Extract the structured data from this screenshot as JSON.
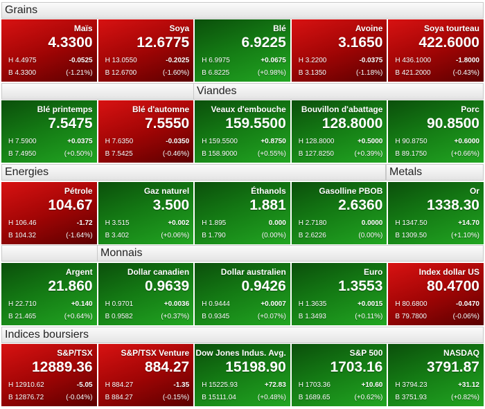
{
  "sections": [
    "Grains",
    "Viandes",
    "Energies",
    "Metals",
    "Monnais",
    "Indices boursiers"
  ],
  "rows": [
    [
      {
        "name": "Maïs",
        "last": "4.3300",
        "high": "H 4.4975",
        "change": "-0.0525",
        "low": "B 4.3300",
        "pct": "(-1.21%)"
      },
      {
        "name": "Soya",
        "last": "12.6775",
        "high": "H 13.0550",
        "change": "-0.2025",
        "low": "B 12.6700",
        "pct": "(-1.60%)"
      },
      {
        "name": "Blé",
        "last": "6.9225",
        "high": "H 6.9975",
        "change": "+0.0675",
        "low": "B 6.8225",
        "pct": "(+0.98%)"
      },
      {
        "name": "Avoine",
        "last": "3.1650",
        "high": "H 3.2200",
        "change": "-0.0375",
        "low": "B 3.1350",
        "pct": "(-1.18%)"
      },
      {
        "name": "Soya tourteau",
        "last": "422.6000",
        "high": "H 436.1000",
        "change": "-1.8000",
        "low": "B 421.2000",
        "pct": "(-0.43%)"
      }
    ],
    [
      {
        "name": "Blé printemps",
        "last": "7.5475",
        "high": "H 7.5900",
        "change": "+0.0375",
        "low": "B 7.4950",
        "pct": "(+0.50%)"
      },
      {
        "name": "Blé d'automne",
        "last": "7.5550",
        "high": "H 7.6350",
        "change": "-0.0350",
        "low": "B 7.5425",
        "pct": "(-0.46%)"
      },
      {
        "name": "Veaux d'embouche",
        "last": "159.5500",
        "high": "H 159.5500",
        "change": "+0.8750",
        "low": "B 158.9000",
        "pct": "(+0.55%)"
      },
      {
        "name": "Bouvillon d'abattage",
        "last": "128.8000",
        "high": "H 128.8000",
        "change": "+0.5000",
        "low": "B 127.8250",
        "pct": "(+0.39%)"
      },
      {
        "name": "Porc",
        "last": "90.8500",
        "high": "H 90.8750",
        "change": "+0.6000",
        "low": "B 89.1750",
        "pct": "(+0.66%)"
      }
    ],
    [
      {
        "name": "Pétrole",
        "last": "104.67",
        "high": "H 106.46",
        "change": "-1.72",
        "low": "B 104.32",
        "pct": "(-1.64%)"
      },
      {
        "name": "Gaz naturel",
        "last": "3.500",
        "high": "H 3.515",
        "change": "+0.002",
        "low": "B 3.402",
        "pct": "(+0.06%)"
      },
      {
        "name": "Éthanols",
        "last": "1.881",
        "high": "H 1.895",
        "change": "0.000",
        "low": "B 1.790",
        "pct": "(0.00%)"
      },
      {
        "name": "Gasolline PBOB",
        "last": "2.6360",
        "high": "H 2.7180",
        "change": "0.0000",
        "low": "B 2.6226",
        "pct": "(0.00%)"
      },
      {
        "name": "Or",
        "last": "1338.30",
        "high": "H 1347.50",
        "change": "+14.70",
        "low": "B 1309.50",
        "pct": "(+1.10%)"
      }
    ],
    [
      {
        "name": "Argent",
        "last": "21.860",
        "high": "H 22.710",
        "change": "+0.140",
        "low": "B 21.465",
        "pct": "(+0.64%)"
      },
      {
        "name": "Dollar canadien",
        "last": "0.9639",
        "high": "H 0.9701",
        "change": "+0.0036",
        "low": "B 0.9582",
        "pct": "(+0.37%)"
      },
      {
        "name": "Dollar australien",
        "last": "0.9426",
        "high": "H 0.9444",
        "change": "+0.0007",
        "low": "B 0.9345",
        "pct": "(+0.07%)"
      },
      {
        "name": "Euro",
        "last": "1.3553",
        "high": "H 1.3635",
        "change": "+0.0015",
        "low": "B 1.3493",
        "pct": "(+0.11%)"
      },
      {
        "name": "Index dollar US",
        "last": "80.4700",
        "high": "H 80.6800",
        "change": "-0.0470",
        "low": "B 79.7800",
        "pct": "(-0.06%)"
      }
    ],
    [
      {
        "name": "S&P/TSX",
        "last": "12889.36",
        "high": "H 12910.62",
        "change": "-5.05",
        "low": "B 12876.72",
        "pct": "(-0.04%)"
      },
      {
        "name": "S&P/TSX Venture",
        "last": "884.27",
        "high": "H 884.27",
        "change": "-1.35",
        "low": "B 884.27",
        "pct": "(-0.15%)"
      },
      {
        "name": "Dow Jones Indus. Avg.",
        "last": "15198.90",
        "high": "H 15225.93",
        "change": "+72.83",
        "low": "B 15111.04",
        "pct": "(+0.48%)"
      },
      {
        "name": "S&P 500",
        "last": "1703.16",
        "high": "H 1703.36",
        "change": "+10.60",
        "low": "B 1689.65",
        "pct": "(+0.62%)"
      },
      {
        "name": "NASDAQ",
        "last": "3791.87",
        "high": "H 3794.23",
        "change": "+31.12",
        "low": "B 3751.93",
        "pct": "(+0.82%)"
      }
    ]
  ]
}
